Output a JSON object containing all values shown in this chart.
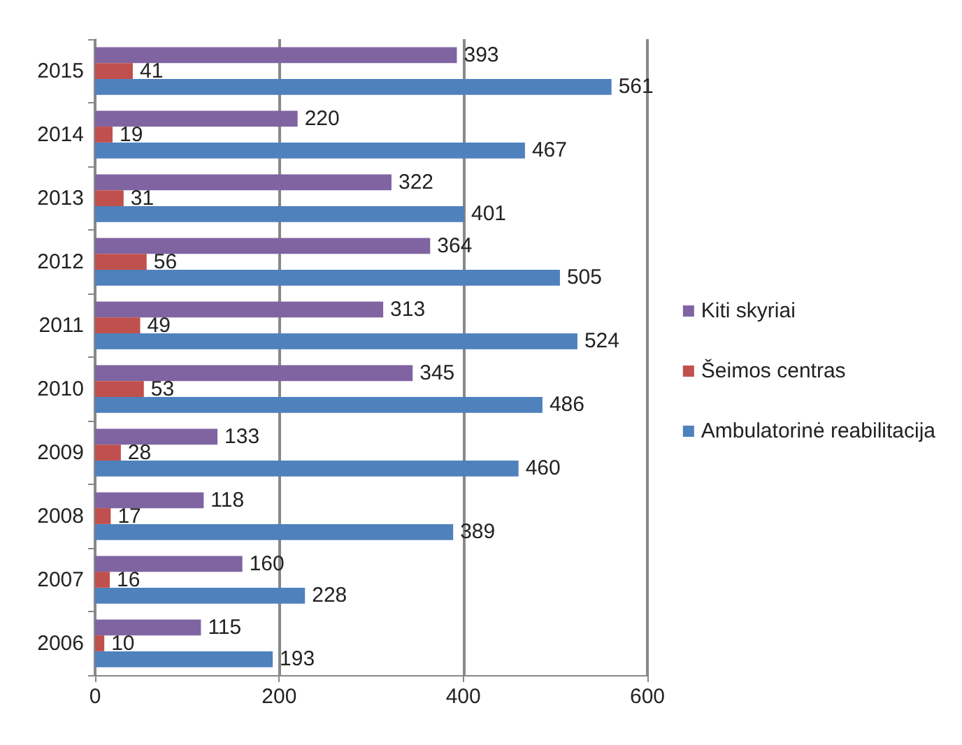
{
  "chart_data": {
    "type": "bar",
    "orientation": "horizontal",
    "categories": [
      "2015",
      "2014",
      "2013",
      "2012",
      "2011",
      "2010",
      "2009",
      "2008",
      "2007",
      "2006"
    ],
    "series": [
      {
        "name": "Kiti skyriai",
        "color": "#8064a2",
        "values": [
          393,
          220,
          322,
          364,
          313,
          345,
          133,
          118,
          160,
          115
        ]
      },
      {
        "name": "Šeimos centras",
        "color": "#c0504d",
        "values": [
          41,
          19,
          31,
          56,
          49,
          53,
          28,
          17,
          16,
          10
        ]
      },
      {
        "name": "Ambulatorinė reabilitacija",
        "color": "#4f81bd",
        "values": [
          561,
          467,
          401,
          505,
          524,
          486,
          460,
          389,
          228,
          193
        ]
      }
    ],
    "xlim": [
      0,
      600
    ],
    "xticks": [
      0,
      200,
      400,
      600
    ],
    "grid": "x",
    "legend": "right",
    "data_labels": true
  }
}
